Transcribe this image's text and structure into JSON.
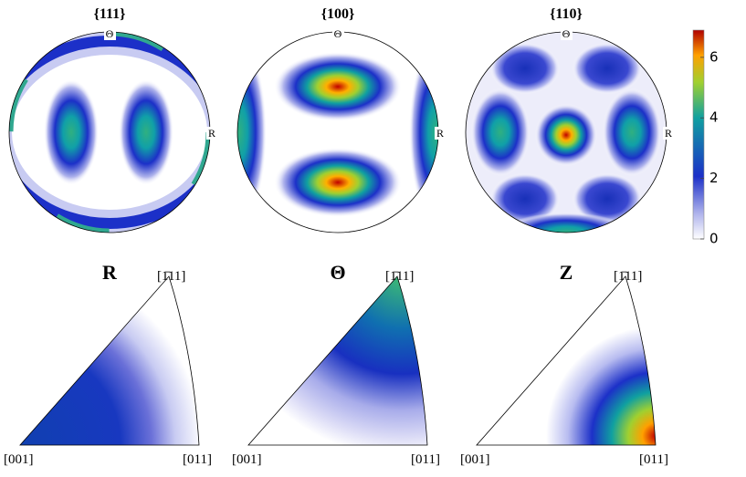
{
  "pole_figures": [
    {
      "title": "{111}",
      "top_label": "Θ",
      "right_label": "R"
    },
    {
      "title": "{100}",
      "top_label": "Θ",
      "right_label": "R"
    },
    {
      "title": "{110}",
      "top_label": "Θ",
      "right_label": "R"
    }
  ],
  "inverse_pole_figures": [
    {
      "title": "R",
      "apex_label": "[1̄11]",
      "left_label": "[001]",
      "right_label": "[011]"
    },
    {
      "title": "Θ",
      "apex_label": "[1̄11]",
      "left_label": "[001]",
      "right_label": "[011]"
    },
    {
      "title": "Z",
      "apex_label": "[1̄11]",
      "left_label": "[001]",
      "right_label": "[011]"
    }
  ],
  "colorbar": {
    "lim": [
      0,
      6.9
    ],
    "ticks": [
      0,
      2,
      4,
      6
    ]
  }
}
